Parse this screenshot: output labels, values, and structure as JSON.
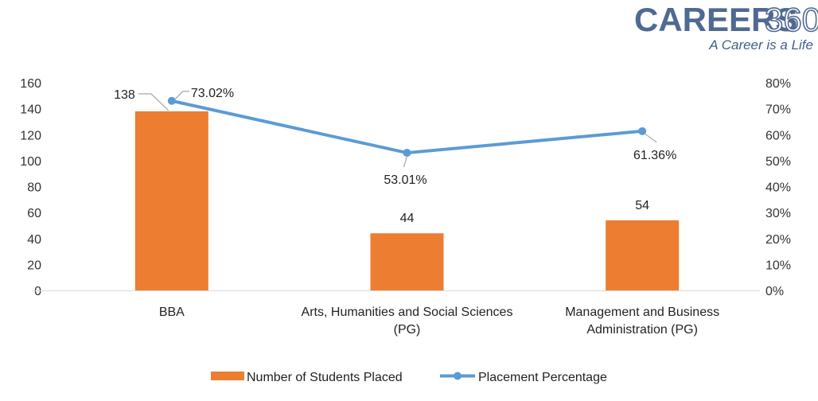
{
  "logo": {
    "brand": "CAREERS",
    "number": "360",
    "tagline": "A Career is a Life"
  },
  "colors": {
    "bar": "#ED7D31",
    "line": "#5B9BD5",
    "axis": "#d9d9d9",
    "leader": "#a6a6a6"
  },
  "chart_data": {
    "type": "bar",
    "title": "",
    "categories": [
      [
        "BBA"
      ],
      [
        "Arts, Humanities and Social Sciences",
        "(PG)"
      ],
      [
        "Management and Business",
        "Administration (PG)"
      ]
    ],
    "series": [
      {
        "name": "Number of Students Placed",
        "type": "bar",
        "axis": "left",
        "values": [
          138,
          44,
          54
        ],
        "labels": [
          "138",
          "44",
          "54"
        ]
      },
      {
        "name": "Placement Percentage",
        "type": "line",
        "axis": "right",
        "values": [
          73.02,
          53.01,
          61.36
        ],
        "labels": [
          "73.02%",
          "53.01%",
          "61.36%"
        ]
      }
    ],
    "y_left": {
      "min": 0,
      "max": 160,
      "step": 20,
      "ticks": [
        "0",
        "20",
        "40",
        "60",
        "80",
        "100",
        "120",
        "140",
        "160"
      ]
    },
    "y_right": {
      "min": 0,
      "max": 80,
      "step": 10,
      "ticks": [
        "0%",
        "10%",
        "20%",
        "30%",
        "40%",
        "50%",
        "60%",
        "70%",
        "80%"
      ]
    },
    "grid": false,
    "legend_position": "bottom"
  }
}
